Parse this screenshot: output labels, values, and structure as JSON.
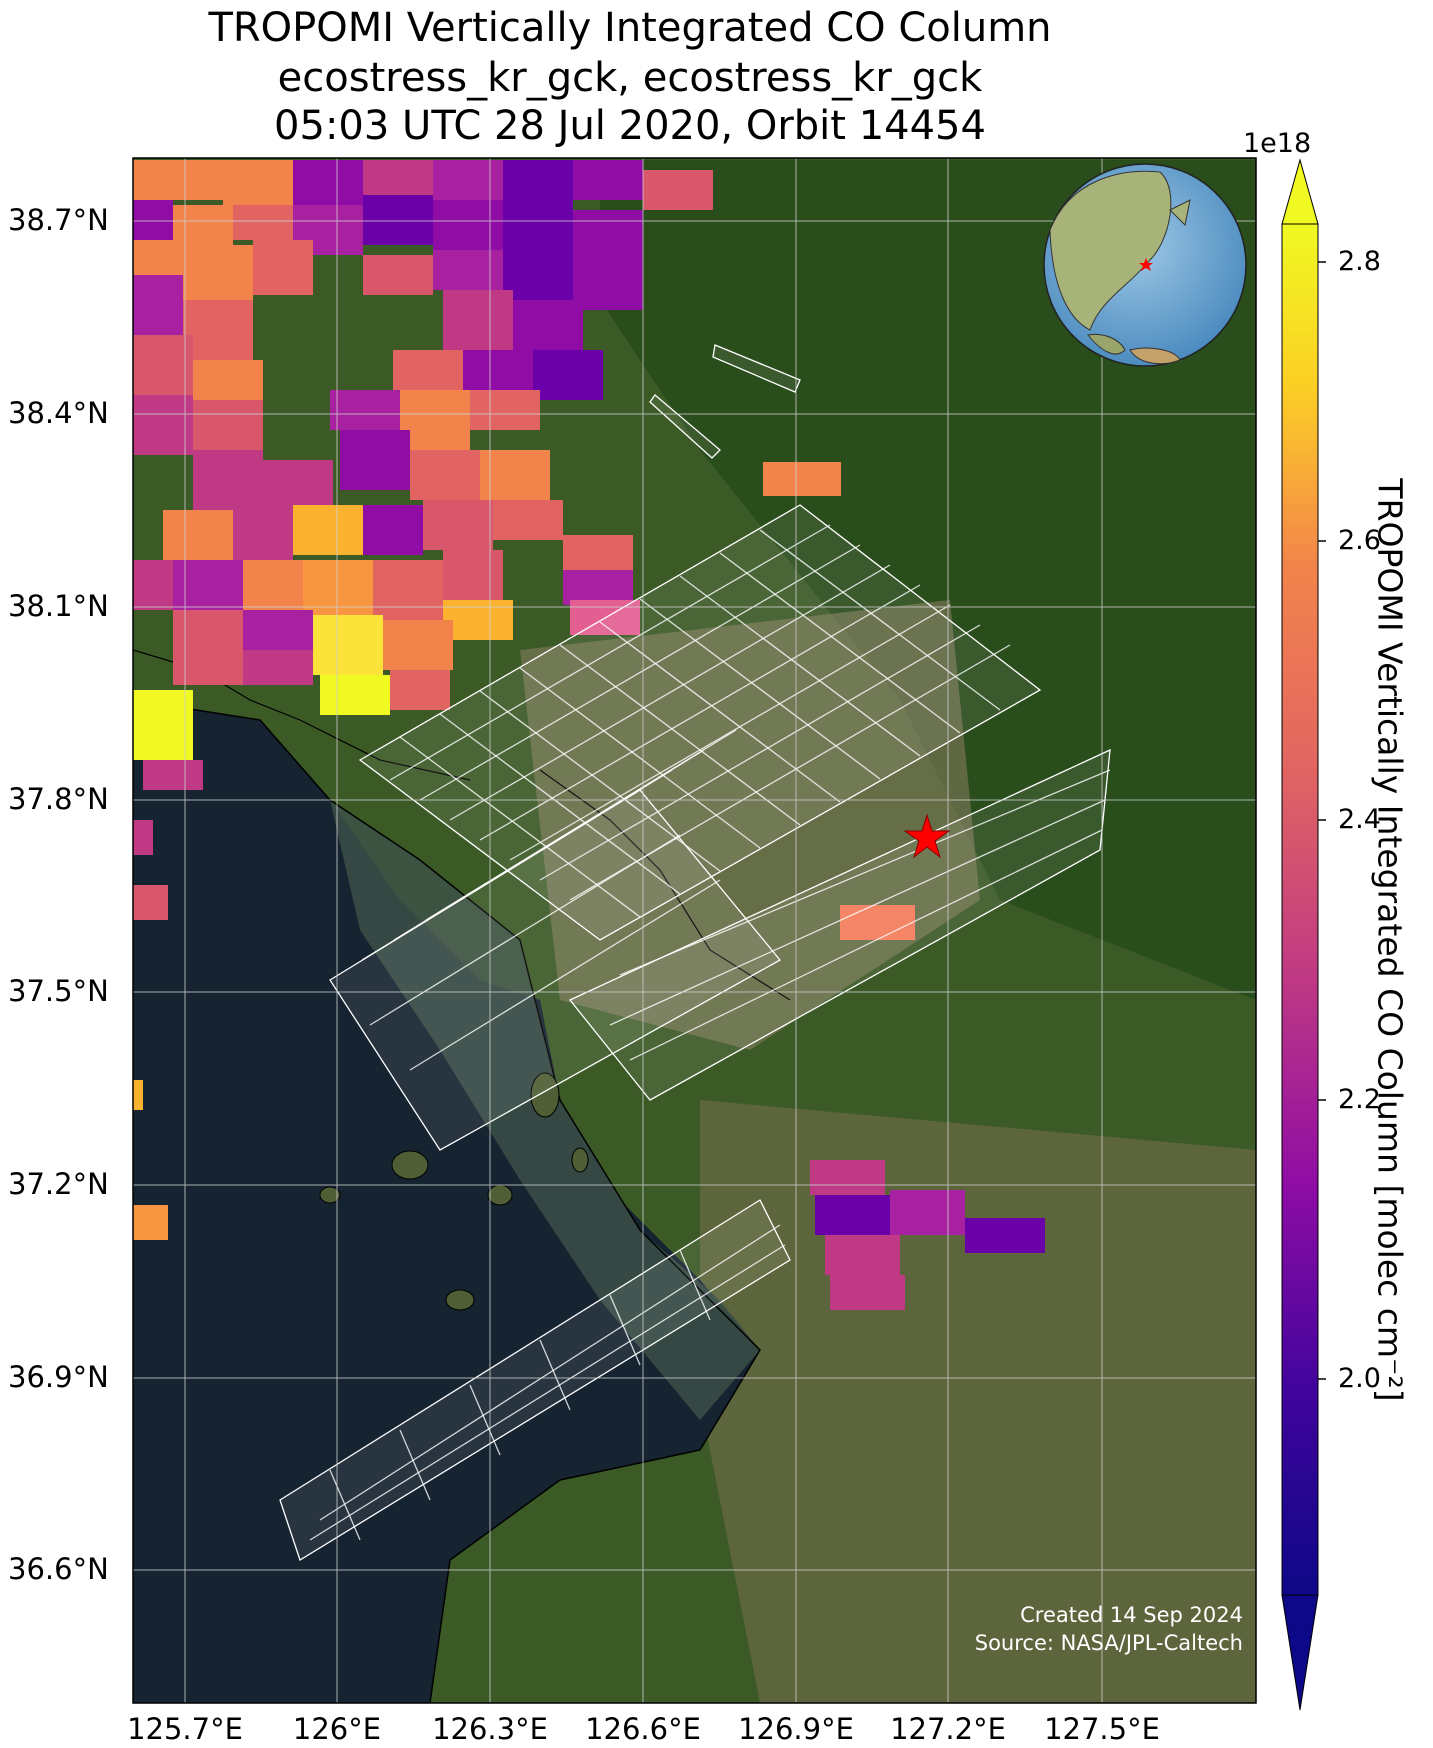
{
  "title": {
    "line1": "TROPOMI Vertically Integrated CO Column",
    "line2": "ecostress_kr_gck, ecostress_kr_gck",
    "line3": "05:03 UTC 28 Jul 2020, Orbit 14454"
  },
  "map": {
    "lat_ticks": [
      "38.7°N",
      "38.4°N",
      "38.1°N",
      "37.8°N",
      "37.5°N",
      "37.2°N",
      "36.9°N",
      "36.6°N"
    ],
    "lon_ticks": [
      "125.7°E",
      "126°E",
      "126.3°E",
      "126.6°E",
      "126.9°E",
      "127.2°E",
      "127.5°E"
    ],
    "target_marker": "red-star",
    "inset": "globe-locator",
    "credit_line1": "Created 14 Sep 2024",
    "credit_line2": "Source: NASA/JPL-Caltech"
  },
  "colorbar": {
    "label": "TROPOMI Vertically Integrated CO Column [molec cm⁻²]",
    "exponent": "1e18",
    "ticks": [
      "2.8",
      "2.6",
      "2.4",
      "2.2",
      "2.0"
    ],
    "colormap": "plasma",
    "range": [
      1.85,
      2.8
    ]
  }
}
